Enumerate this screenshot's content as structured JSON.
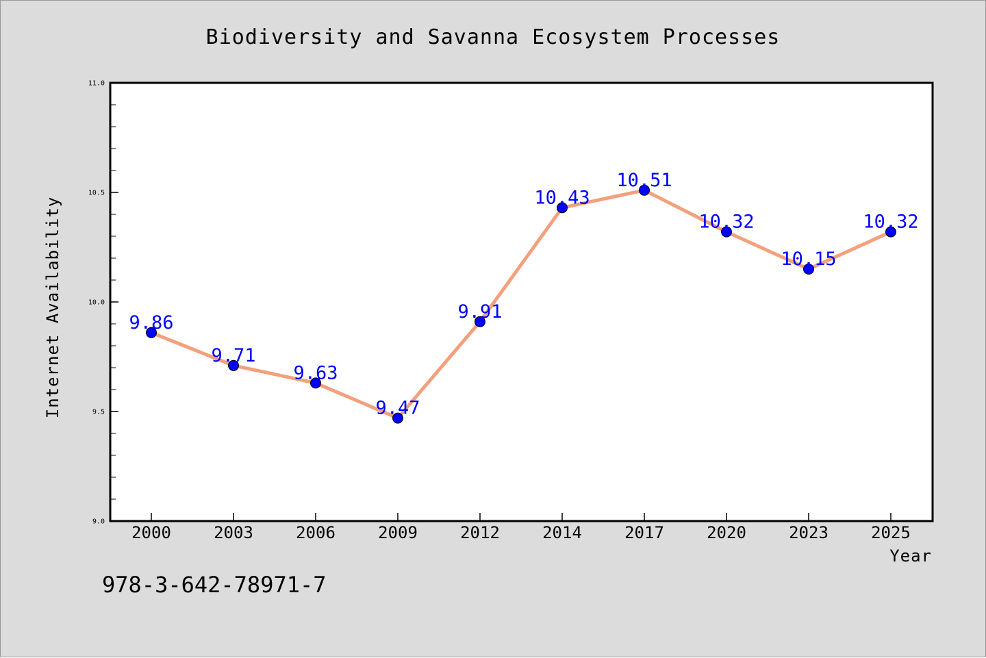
{
  "isbn": "978-3-642-78971-7",
  "colors": {
    "figure_background": "#dcdcdc",
    "plot_background": "#ffffff",
    "line": "#f4a07c",
    "marker": "#0000ff",
    "data_label": "#0000ff",
    "axes": "#000000"
  },
  "chart_data": {
    "type": "line",
    "title": "Biodiversity and Savanna Ecosystem Processes",
    "xlabel": "Year",
    "ylabel": "Internet Availability",
    "categories": [
      "2000",
      "2003",
      "2006",
      "2009",
      "2012",
      "2014",
      "2017",
      "2020",
      "2023",
      "2025"
    ],
    "values": [
      9.86,
      9.71,
      9.63,
      9.47,
      9.91,
      10.43,
      10.51,
      10.32,
      10.15,
      10.32
    ],
    "data_labels": [
      "9.86",
      "9.71",
      "9.63",
      "9.47",
      "9.91",
      "10.43",
      "10.51",
      "10.32",
      "10.15",
      "10.32"
    ],
    "ylim": [
      9.0,
      11.0
    ],
    "yticks": [
      "9.0",
      "9.5",
      "10.0",
      "10.5",
      "11.0"
    ],
    "ytick_values": [
      9.0,
      9.5,
      10.0,
      10.5,
      11.0
    ],
    "minor_ytick_step": 0.1,
    "grid": false,
    "legend": "none"
  }
}
